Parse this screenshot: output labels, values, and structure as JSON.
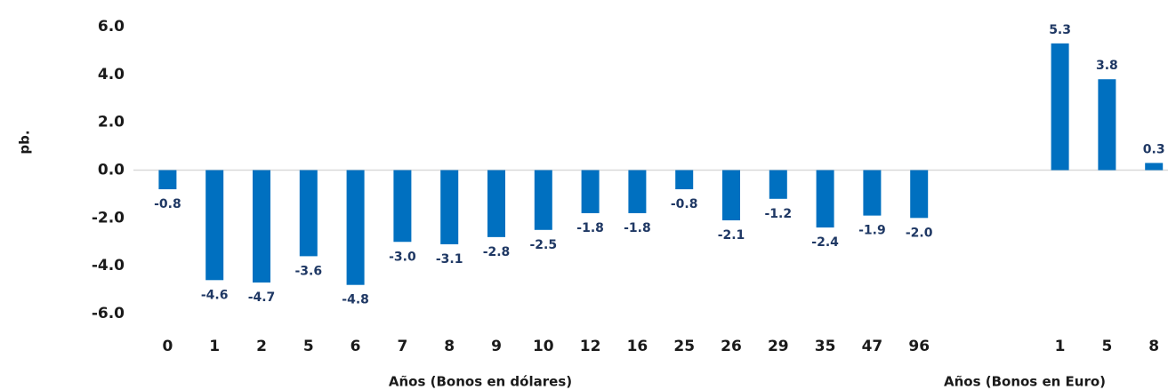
{
  "chart_data": {
    "type": "bar",
    "y_label": "pb.",
    "x_label_left": "Años (Bonos en dólares)",
    "x_label_right": "Años (Bonos en Euro)",
    "categories": [
      "0",
      "1",
      "2",
      "5",
      "6",
      "7",
      "8",
      "9",
      "10",
      "12",
      "16",
      "25",
      "26",
      "29",
      "35",
      "47",
      "96",
      null,
      null,
      "1",
      "5",
      "8"
    ],
    "values": [
      -0.8,
      -4.6,
      -4.7,
      -3.6,
      -4.8,
      -3.0,
      -3.1,
      -2.8,
      -2.5,
      -1.8,
      -1.8,
      -0.8,
      -2.1,
      -1.2,
      -2.4,
      -1.9,
      -2.0,
      null,
      null,
      5.3,
      3.8,
      0.3
    ],
    "value_labels": [
      "-0.8",
      "-4.6",
      "-4.7",
      "-3.6",
      "-4.8",
      "-3.0",
      "-3.1",
      "-2.8",
      "-2.5",
      "-1.8",
      "-1.8",
      "-0.8",
      "-2.1",
      "-1.2",
      "-2.4",
      "-1.9",
      "-2.0",
      null,
      null,
      "5.3",
      "3.8",
      "0.3"
    ],
    "color": "#0070c0",
    "ylim": [
      -6,
      6
    ],
    "yticks": [
      {
        "value": 6,
        "label": "6.0"
      },
      {
        "value": 4,
        "label": "4.0"
      },
      {
        "value": 2,
        "label": "2.0"
      },
      {
        "value": 0,
        "label": "0.0"
      },
      {
        "value": -2,
        "label": "-2.0"
      },
      {
        "value": -4,
        "label": "-4.0"
      },
      {
        "value": -6,
        "label": "-6.0"
      }
    ],
    "grid": false
  }
}
